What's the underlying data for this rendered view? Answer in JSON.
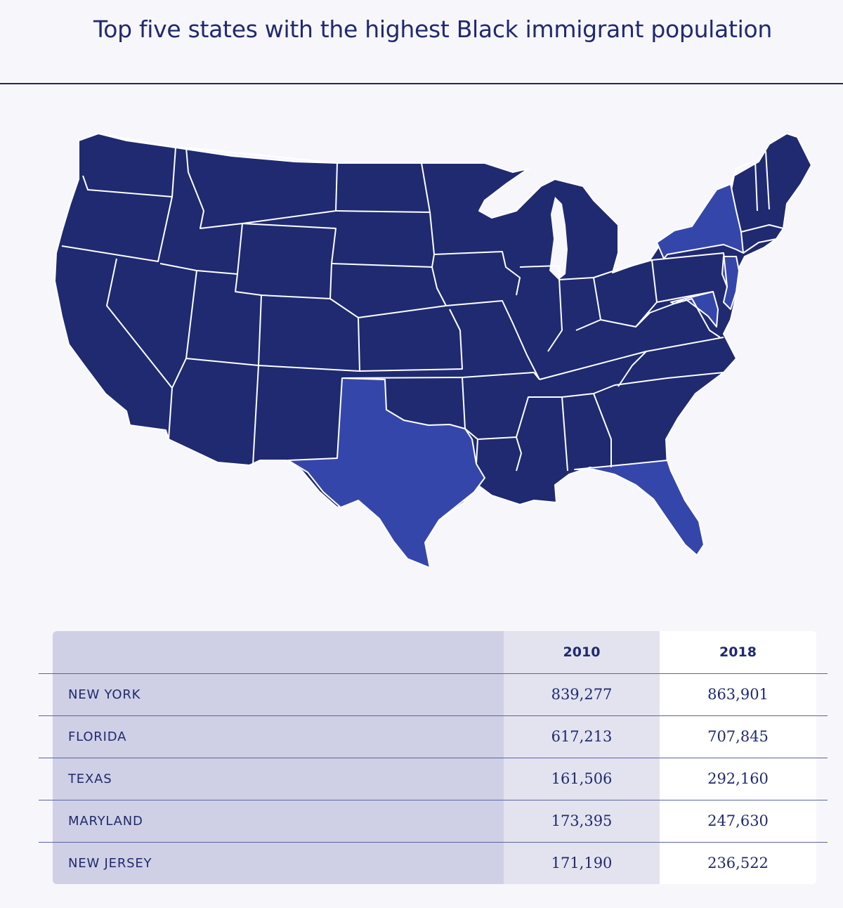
{
  "title": "Top five states with the highest Black immigrant population",
  "map": {
    "highlighted_states": [
      "New York",
      "Florida",
      "Texas",
      "Maryland",
      "New Jersey"
    ],
    "colors": {
      "base_state": "#1f2a71",
      "highlighted_state": "#3546ab",
      "border": "#ffffff",
      "background": "#f7f6fb"
    }
  },
  "table": {
    "headers": [
      "",
      "2010",
      "2018"
    ],
    "rows": [
      {
        "state": "NEW YORK",
        "y2010": "839,277",
        "y2018": "863,901"
      },
      {
        "state": "FLORIDA",
        "y2010": "617,213",
        "y2018": "707,845"
      },
      {
        "state": "TEXAS",
        "y2010": "161,506",
        "y2018": "292,160"
      },
      {
        "state": "MARYLAND",
        "y2010": "173,395",
        "y2018": "247,630"
      },
      {
        "state": "NEW JERSEY",
        "y2010": "171,190",
        "y2018": "236,522"
      }
    ]
  }
}
